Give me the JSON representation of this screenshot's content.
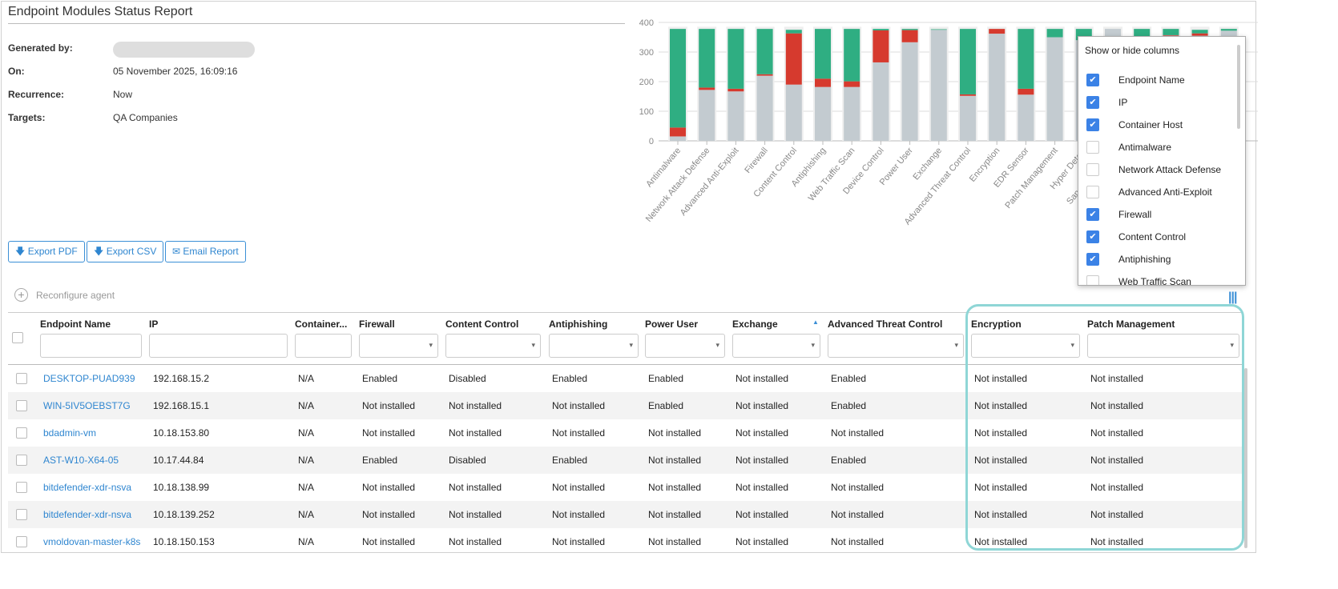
{
  "report": {
    "title": "Endpoint Modules Status Report",
    "meta": [
      {
        "label": "Generated by:",
        "value": ""
      },
      {
        "label": "On:",
        "value": "05 November 2025, 16:09:16"
      },
      {
        "label": "Recurrence:",
        "value": "Now"
      },
      {
        "label": "Targets:",
        "value": "QA Companies"
      }
    ]
  },
  "actions": {
    "export_pdf": "Export PDF",
    "export_csv": "Export CSV",
    "email_report": "Email Report",
    "reconfigure": "Reconfigure agent"
  },
  "chart_data": {
    "type": "bar",
    "stacked": true,
    "ylim": [
      0,
      400
    ],
    "yticks": [
      0,
      100,
      200,
      300,
      400
    ],
    "grid": true,
    "categories": [
      "Antimalware",
      "Network Attack Defense",
      "Advanced Anti-Exploit",
      "Firewall",
      "Content Control",
      "Antiphishing",
      "Web Traffic Scan",
      "Device Control",
      "Power User",
      "Exchange",
      "Advanced Threat Control",
      "Encryption",
      "EDR Sensor",
      "Patch Management",
      "Hyper Detect",
      "Sandbox Analyzer",
      "",
      "",
      "",
      ""
    ],
    "series": [
      {
        "key": "not_installed",
        "color": "#c3cbd0",
        "values": [
          15,
          172,
          167,
          220,
          190,
          182,
          182,
          265,
          333,
          375,
          152,
          362,
          156,
          350,
          340,
          378,
          350,
          355,
          355,
          372
        ]
      },
      {
        "key": "disabled",
        "color": "#d63a2e",
        "values": [
          30,
          8,
          9,
          5,
          173,
          28,
          19,
          108,
          41,
          0,
          5,
          16,
          20,
          0,
          0,
          0,
          0,
          2,
          8,
          0
        ]
      },
      {
        "key": "enabled",
        "color": "#2fae82",
        "values": [
          333,
          198,
          202,
          153,
          12,
          168,
          177,
          5,
          4,
          2,
          221,
          0,
          202,
          28,
          38,
          0,
          28,
          21,
          12,
          6
        ]
      }
    ]
  },
  "popup": {
    "title": "Show or hide columns",
    "items": [
      {
        "label": "Endpoint Name",
        "checked": true
      },
      {
        "label": "IP",
        "checked": true
      },
      {
        "label": "Container Host",
        "checked": true
      },
      {
        "label": "Antimalware",
        "checked": false
      },
      {
        "label": "Network Attack Defense",
        "checked": false
      },
      {
        "label": "Advanced Anti-Exploit",
        "checked": false
      },
      {
        "label": "Firewall",
        "checked": true
      },
      {
        "label": "Content Control",
        "checked": true
      },
      {
        "label": "Antiphishing",
        "checked": true
      },
      {
        "label": "Web Traffic Scan",
        "checked": false
      }
    ]
  },
  "table": {
    "columns": [
      "Endpoint Name",
      "IP",
      "Container...",
      "Firewall",
      "Content Control",
      "Antiphishing",
      "Power User",
      "Exchange",
      "Advanced Threat Control",
      "Encryption",
      "Patch Management"
    ],
    "sorted_column": "Exchange",
    "rows": [
      [
        "DESKTOP-PUAD939",
        "192.168.15.2",
        "N/A",
        "Enabled",
        "Disabled",
        "Enabled",
        "Enabled",
        "Not installed",
        "Enabled",
        "Not installed",
        "Not installed"
      ],
      [
        "WIN-5IV5OEBST7G",
        "192.168.15.1",
        "N/A",
        "Not installed",
        "Not installed",
        "Not installed",
        "Enabled",
        "Not installed",
        "Enabled",
        "Not installed",
        "Not installed"
      ],
      [
        "bdadmin-vm",
        "10.18.153.80",
        "N/A",
        "Not installed",
        "Not installed",
        "Not installed",
        "Not installed",
        "Not installed",
        "Not installed",
        "Not installed",
        "Not installed"
      ],
      [
        "AST-W10-X64-05",
        "10.17.44.84",
        "N/A",
        "Enabled",
        "Disabled",
        "Enabled",
        "Not installed",
        "Not installed",
        "Enabled",
        "Not installed",
        "Not installed"
      ],
      [
        "bitdefender-xdr-nsva",
        "10.18.138.99",
        "N/A",
        "Not installed",
        "Not installed",
        "Not installed",
        "Not installed",
        "Not installed",
        "Not installed",
        "Not installed",
        "Not installed"
      ],
      [
        "bitdefender-xdr-nsva",
        "10.18.139.252",
        "N/A",
        "Not installed",
        "Not installed",
        "Not installed",
        "Not installed",
        "Not installed",
        "Not installed",
        "Not installed",
        "Not installed"
      ],
      [
        "vmoldovan-master-k8s",
        "10.18.150.153",
        "N/A",
        "Not installed",
        "Not installed",
        "Not installed",
        "Not installed",
        "Not installed",
        "Not installed",
        "Not installed",
        "Not installed"
      ]
    ]
  }
}
